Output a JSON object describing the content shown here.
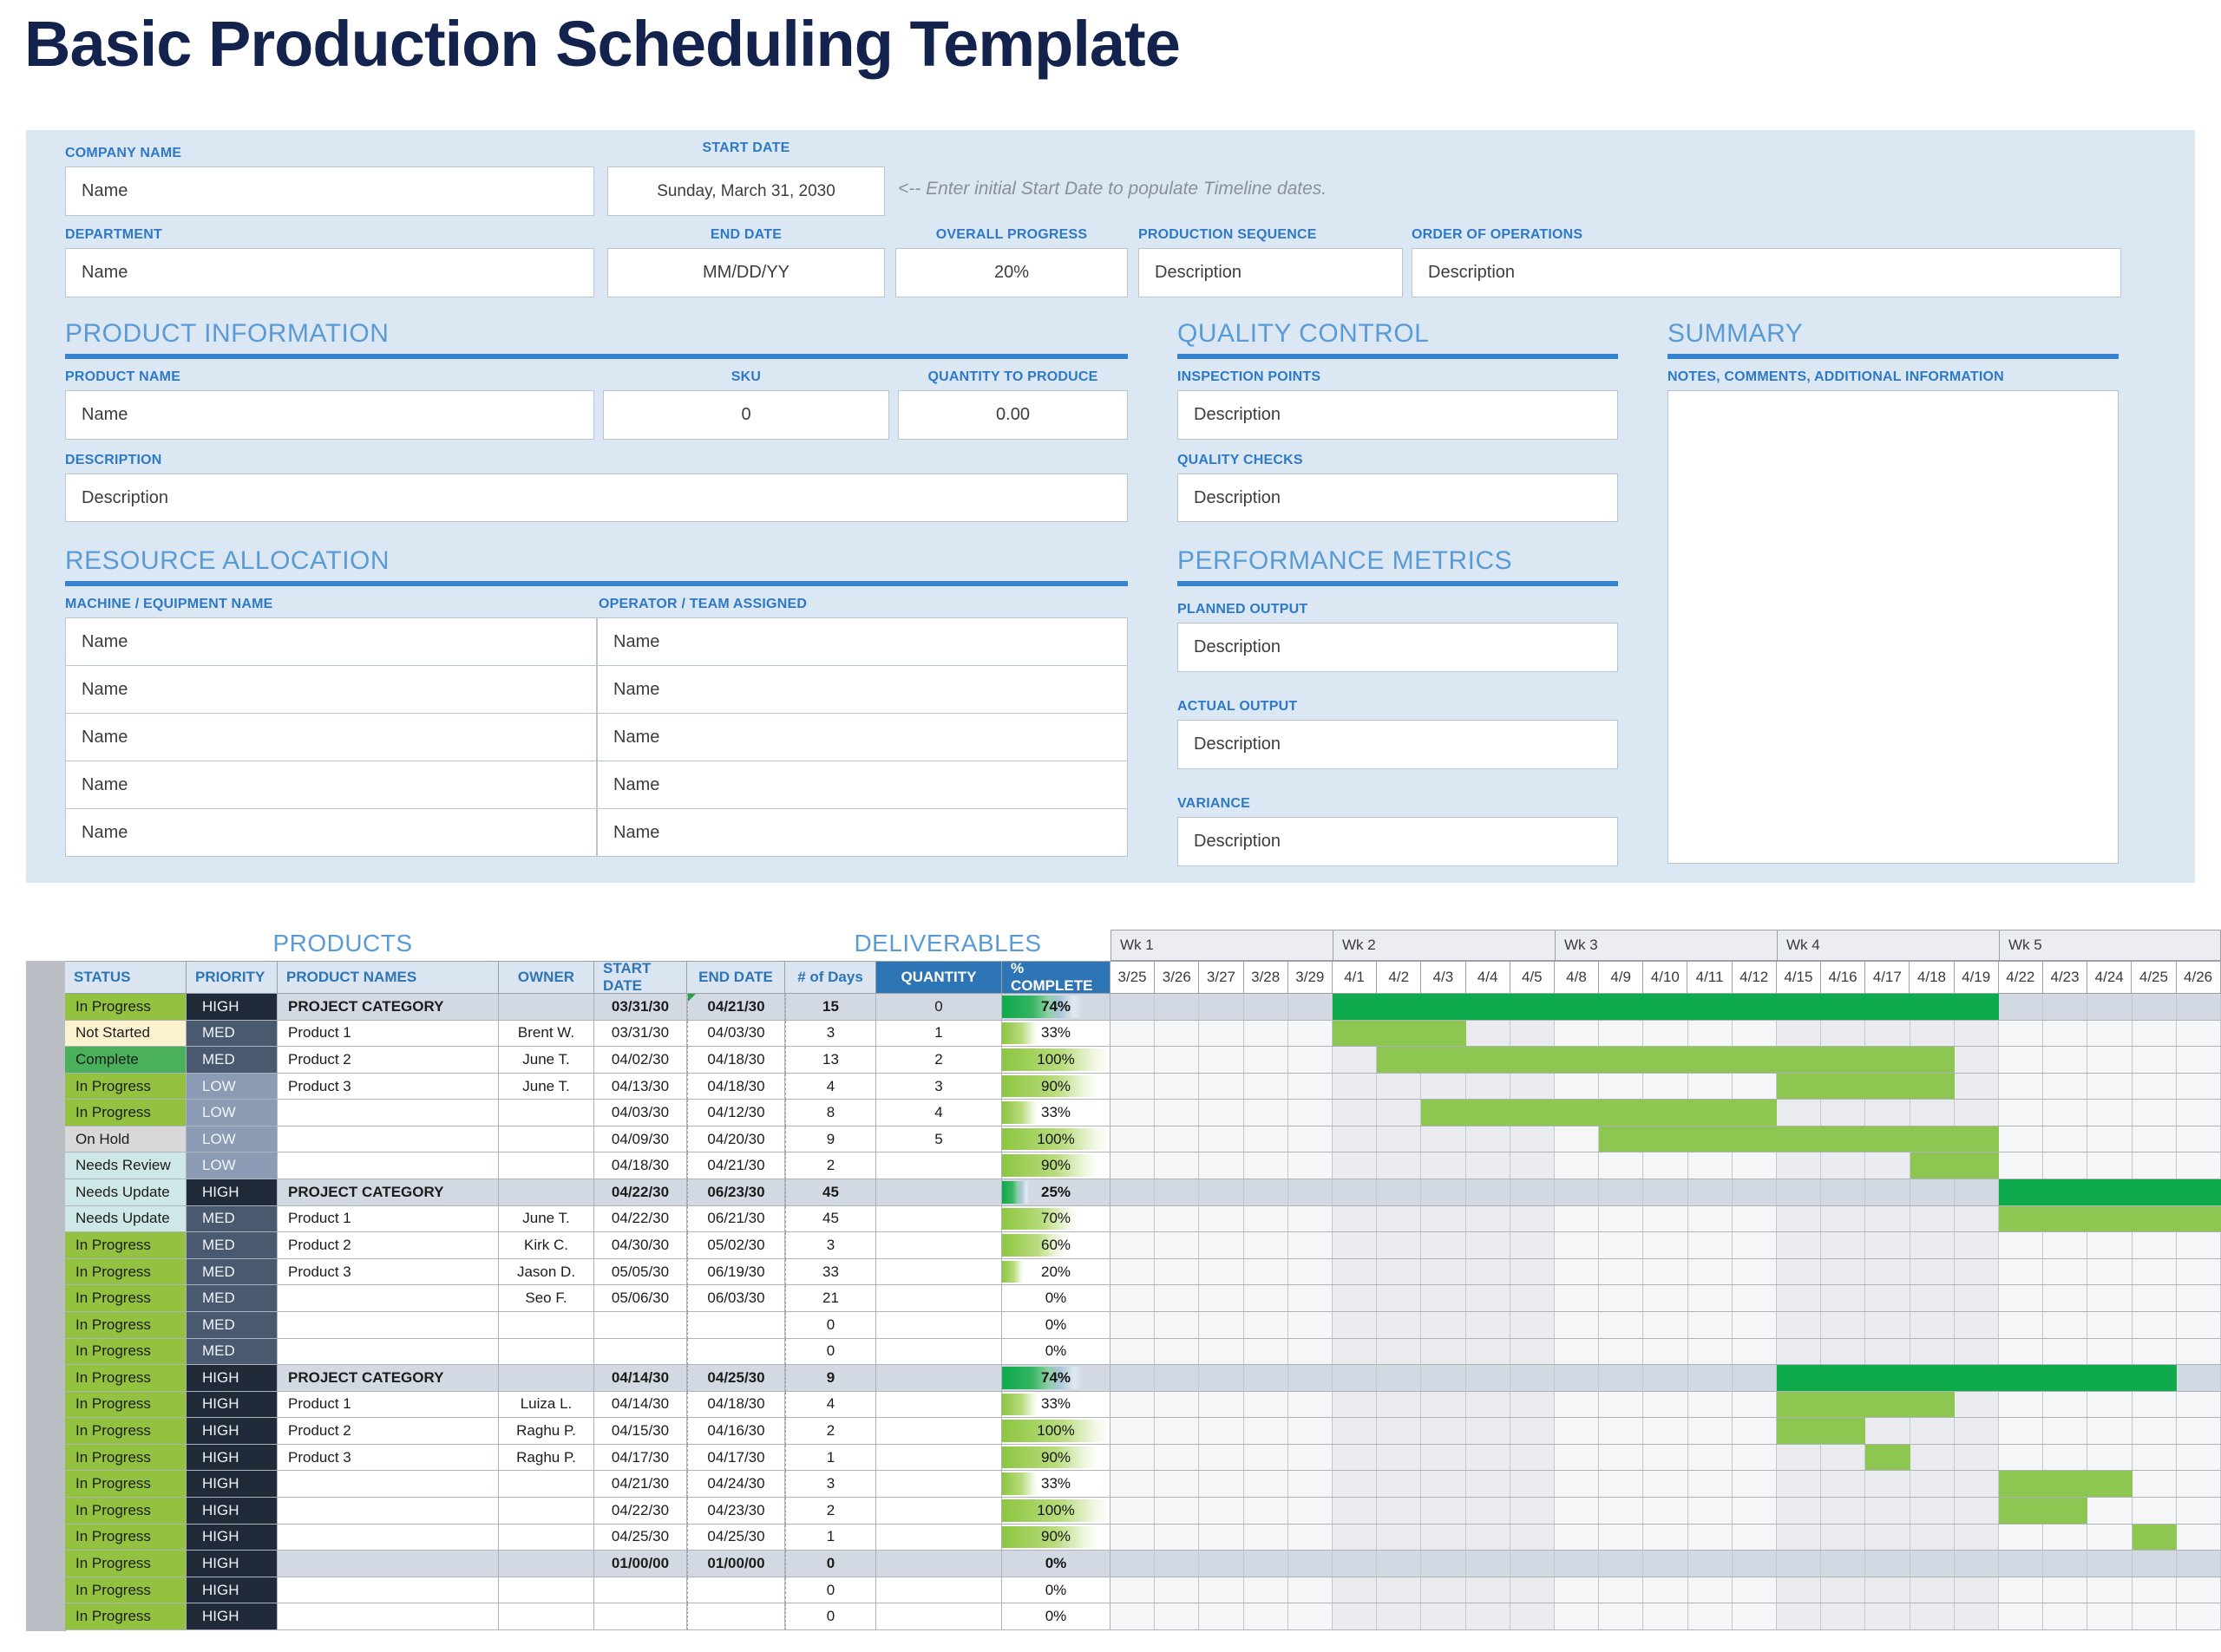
{
  "title": "Basic Production Scheduling Template",
  "colors": {
    "accent_blue": "#2e75b6",
    "heading_blue": "#5b9bd5",
    "title_navy": "#13234e",
    "panel_blue": "#dbe8f4",
    "bar_light": "#8dc751",
    "bar_dark": "#0faa4b",
    "category_row": "#d2d9e2",
    "week_shaded": "#e9ebef",
    "week_plain": "#f5f6f8",
    "status": {
      "In Progress": "#92c23f",
      "Not Started": "#fdf2cf",
      "Complete": "#4ab05c",
      "On Hold": "#d8d8d8",
      "Needs Review": "#cde8e6",
      "Needs Update": "#cde8e6"
    },
    "priority": {
      "HIGH": "#202a39",
      "MED": "#49596f",
      "LOW": "#8b9bb3"
    }
  },
  "form": {
    "company": {
      "label": "COMPANY NAME",
      "value": "Name"
    },
    "start_date": {
      "label": "START DATE",
      "value": "Sunday, March 31, 2030"
    },
    "hint": "<-- Enter initial Start Date to populate Timeline dates.",
    "department": {
      "label": "DEPARTMENT",
      "value": "Name"
    },
    "end_date": {
      "label": "END DATE",
      "value": "MM/DD/YY"
    },
    "overall_progress": {
      "label": "OVERALL PROGRESS",
      "value": "20%"
    },
    "production_sequence": {
      "label": "PRODUCTION SEQUENCE",
      "value": "Description"
    },
    "order_of_operations": {
      "label": "ORDER OF OPERATIONS",
      "value": "Description"
    }
  },
  "product_information": {
    "title": "PRODUCT INFORMATION",
    "product_name": {
      "label": "PRODUCT NAME",
      "value": "Name"
    },
    "sku": {
      "label": "SKU",
      "value": "0"
    },
    "quantity": {
      "label": "QUANTITY TO PRODUCE",
      "value": "0.00"
    },
    "description": {
      "label": "DESCRIPTION",
      "value": "Description"
    }
  },
  "quality_control": {
    "title": "QUALITY CONTROL",
    "inspection_points": {
      "label": "INSPECTION POINTS",
      "value": "Description"
    },
    "quality_checks": {
      "label": "QUALITY CHECKS",
      "value": "Description"
    }
  },
  "summary": {
    "title": "SUMMARY",
    "notes_label": "NOTES, COMMENTS, ADDITIONAL INFORMATION",
    "notes_value": ""
  },
  "resource_allocation": {
    "title": "RESOURCE ALLOCATION",
    "machine_label": "MACHINE / EQUIPMENT NAME",
    "operator_label": "OPERATOR / TEAM ASSIGNED",
    "rows": [
      [
        "Name",
        "Name"
      ],
      [
        "Name",
        "Name"
      ],
      [
        "Name",
        "Name"
      ],
      [
        "Name",
        "Name"
      ],
      [
        "Name",
        "Name"
      ]
    ]
  },
  "performance_metrics": {
    "title": "PERFORMANCE METRICS",
    "fields": [
      {
        "label": "PLANNED OUTPUT",
        "value": "Description"
      },
      {
        "label": "ACTUAL OUTPUT",
        "value": "Description"
      },
      {
        "label": "VARIANCE",
        "value": "Description"
      }
    ]
  },
  "gantt": {
    "products_title": "PRODUCTS",
    "deliverables_title": "DELIVERABLES",
    "columns": [
      "STATUS",
      "PRIORITY",
      "PRODUCT NAMES",
      "OWNER",
      "START DATE",
      "END DATE",
      "# of Days",
      "QUANTITY",
      "% COMPLETE"
    ],
    "weeks": [
      {
        "label": "Wk 1",
        "days": [
          "3/25",
          "3/26",
          "3/27",
          "3/28",
          "3/29"
        ]
      },
      {
        "label": "Wk 2",
        "days": [
          "4/1",
          "4/2",
          "4/3",
          "4/4",
          "4/5"
        ]
      },
      {
        "label": "Wk 3",
        "days": [
          "4/8",
          "4/9",
          "4/10",
          "4/11",
          "4/12"
        ]
      },
      {
        "label": "Wk 4",
        "days": [
          "4/15",
          "4/16",
          "4/17",
          "4/18",
          "4/19"
        ]
      },
      {
        "label": "Wk 5",
        "days": [
          "4/22",
          "4/23",
          "4/24",
          "4/25",
          "4/26"
        ]
      }
    ],
    "rows": [
      {
        "status": "In Progress",
        "priority": "HIGH",
        "name": "PROJECT CATEGORY",
        "owner": "",
        "start": "03/31/30",
        "end": "04/21/30",
        "days": "15",
        "qty": "0",
        "pct": 74,
        "category": true,
        "comment_flag": true,
        "bar": {
          "from": 6,
          "to": 20,
          "dark": true
        }
      },
      {
        "status": "Not Started",
        "priority": "MED",
        "name": "Product 1",
        "owner": "Brent W.",
        "start": "03/31/30",
        "end": "04/03/30",
        "days": "3",
        "qty": "1",
        "pct": 33,
        "category": false,
        "bar": {
          "from": 6,
          "to": 8,
          "dark": false
        }
      },
      {
        "status": "Complete",
        "priority": "MED",
        "name": "Product 2",
        "owner": "June T.",
        "start": "04/02/30",
        "end": "04/18/30",
        "days": "13",
        "qty": "2",
        "pct": 100,
        "category": false,
        "bar": {
          "from": 7,
          "to": 19,
          "dark": false
        }
      },
      {
        "status": "In Progress",
        "priority": "LOW",
        "name": "Product 3",
        "owner": "June T.",
        "start": "04/13/30",
        "end": "04/18/30",
        "days": "4",
        "qty": "3",
        "pct": 90,
        "category": false,
        "bar": {
          "from": 16,
          "to": 19,
          "dark": false
        }
      },
      {
        "status": "In Progress",
        "priority": "LOW",
        "name": "",
        "owner": "",
        "start": "04/03/30",
        "end": "04/12/30",
        "days": "8",
        "qty": "4",
        "pct": 33,
        "category": false,
        "bar": {
          "from": 8,
          "to": 15,
          "dark": false
        }
      },
      {
        "status": "On Hold",
        "priority": "LOW",
        "name": "",
        "owner": "",
        "start": "04/09/30",
        "end": "04/20/30",
        "days": "9",
        "qty": "5",
        "pct": 100,
        "category": false,
        "bar": {
          "from": 12,
          "to": 20,
          "dark": false
        }
      },
      {
        "status": "Needs Review",
        "priority": "LOW",
        "name": "",
        "owner": "",
        "start": "04/18/30",
        "end": "04/21/30",
        "days": "2",
        "qty": "",
        "pct": 90,
        "category": false,
        "bar": {
          "from": 19,
          "to": 20,
          "dark": false
        }
      },
      {
        "status": "Needs Update",
        "priority": "HIGH",
        "name": "PROJECT CATEGORY",
        "owner": "",
        "start": "04/22/30",
        "end": "06/23/30",
        "days": "45",
        "qty": "",
        "pct": 25,
        "category": true,
        "bar": {
          "from": 21,
          "to": 25,
          "dark": true
        }
      },
      {
        "status": "Needs Update",
        "priority": "MED",
        "name": "Product 1",
        "owner": "June T.",
        "start": "04/22/30",
        "end": "06/21/30",
        "days": "45",
        "qty": "",
        "pct": 70,
        "category": false,
        "bar": {
          "from": 21,
          "to": 25,
          "dark": false
        }
      },
      {
        "status": "In Progress",
        "priority": "MED",
        "name": "Product 2",
        "owner": "Kirk C.",
        "start": "04/30/30",
        "end": "05/02/30",
        "days": "3",
        "qty": "",
        "pct": 60,
        "category": false,
        "bar": null
      },
      {
        "status": "In Progress",
        "priority": "MED",
        "name": "Product 3",
        "owner": "Jason D.",
        "start": "05/05/30",
        "end": "06/19/30",
        "days": "33",
        "qty": "",
        "pct": 20,
        "category": false,
        "bar": null
      },
      {
        "status": "In Progress",
        "priority": "MED",
        "name": "",
        "owner": "Seo F.",
        "start": "05/06/30",
        "end": "06/03/30",
        "days": "21",
        "qty": "",
        "pct": 0,
        "category": false,
        "bar": null
      },
      {
        "status": "In Progress",
        "priority": "MED",
        "name": "",
        "owner": "",
        "start": "",
        "end": "",
        "days": "0",
        "qty": "",
        "pct": 0,
        "category": false,
        "bar": null
      },
      {
        "status": "In Progress",
        "priority": "MED",
        "name": "",
        "owner": "",
        "start": "",
        "end": "",
        "days": "0",
        "qty": "",
        "pct": 0,
        "category": false,
        "bar": null
      },
      {
        "status": "In Progress",
        "priority": "HIGH",
        "name": "PROJECT CATEGORY",
        "owner": "",
        "start": "04/14/30",
        "end": "04/25/30",
        "days": "9",
        "qty": "",
        "pct": 74,
        "category": true,
        "bar": {
          "from": 16,
          "to": 24,
          "dark": true
        }
      },
      {
        "status": "In Progress",
        "priority": "HIGH",
        "name": "Product 1",
        "owner": "Luiza L.",
        "start": "04/14/30",
        "end": "04/18/30",
        "days": "4",
        "qty": "",
        "pct": 33,
        "category": false,
        "bar": {
          "from": 16,
          "to": 19,
          "dark": false
        }
      },
      {
        "status": "In Progress",
        "priority": "HIGH",
        "name": "Product 2",
        "owner": "Raghu P.",
        "start": "04/15/30",
        "end": "04/16/30",
        "days": "2",
        "qty": "",
        "pct": 100,
        "category": false,
        "bar": {
          "from": 16,
          "to": 17,
          "dark": false
        }
      },
      {
        "status": "In Progress",
        "priority": "HIGH",
        "name": "Product 3",
        "owner": "Raghu P.",
        "start": "04/17/30",
        "end": "04/17/30",
        "days": "1",
        "qty": "",
        "pct": 90,
        "category": false,
        "bar": {
          "from": 18,
          "to": 18,
          "dark": false
        }
      },
      {
        "status": "In Progress",
        "priority": "HIGH",
        "name": "",
        "owner": "",
        "start": "04/21/30",
        "end": "04/24/30",
        "days": "3",
        "qty": "",
        "pct": 33,
        "category": false,
        "bar": {
          "from": 21,
          "to": 23,
          "dark": false
        }
      },
      {
        "status": "In Progress",
        "priority": "HIGH",
        "name": "",
        "owner": "",
        "start": "04/22/30",
        "end": "04/23/30",
        "days": "2",
        "qty": "",
        "pct": 100,
        "category": false,
        "bar": {
          "from": 21,
          "to": 22,
          "dark": false
        }
      },
      {
        "status": "In Progress",
        "priority": "HIGH",
        "name": "",
        "owner": "",
        "start": "04/25/30",
        "end": "04/25/30",
        "days": "1",
        "qty": "",
        "pct": 90,
        "category": false,
        "bar": {
          "from": 24,
          "to": 24,
          "dark": false
        }
      },
      {
        "status": "In Progress",
        "priority": "HIGH",
        "name": "",
        "owner": "",
        "start": "01/00/00",
        "end": "01/00/00",
        "days": "0",
        "qty": "",
        "pct": 0,
        "category": true,
        "bar": null
      },
      {
        "status": "In Progress",
        "priority": "HIGH",
        "name": "",
        "owner": "",
        "start": "",
        "end": "",
        "days": "0",
        "qty": "",
        "pct": 0,
        "category": false,
        "bar": null
      },
      {
        "status": "In Progress",
        "priority": "HIGH",
        "name": "",
        "owner": "",
        "start": "",
        "end": "",
        "days": "0",
        "qty": "",
        "pct": 0,
        "category": false,
        "bar": null
      }
    ]
  }
}
